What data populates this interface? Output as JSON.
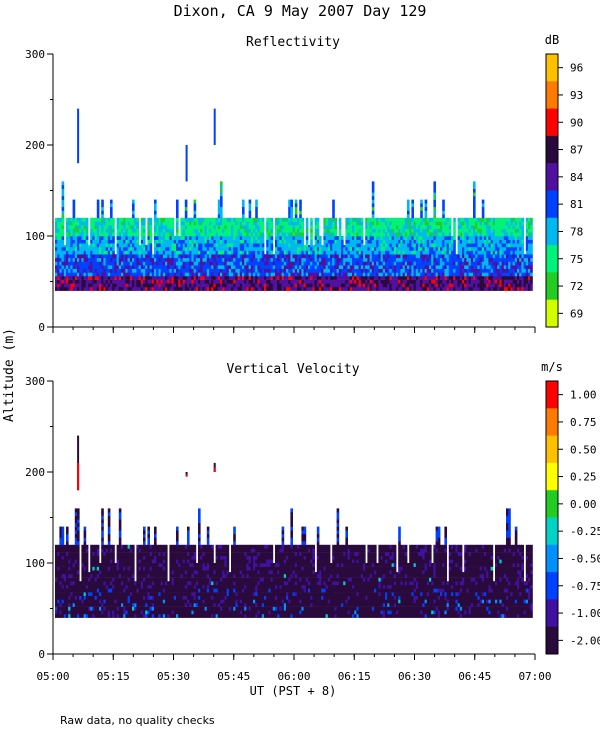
{
  "title": "Dixon, CA  9 May 2007  Day 129",
  "ylabel": "Altitude (m)",
  "xlabel": "UT  (PST + 8)",
  "footnote": "Raw data, no quality checks",
  "x_ticks": [
    "05:00",
    "05:15",
    "05:30",
    "05:45",
    "06:00",
    "06:15",
    "06:30",
    "06:45",
    "07:00"
  ],
  "chart_data": [
    {
      "type": "heatmap",
      "title": "Reflectivity",
      "unit": "dB",
      "xlabel": "UT  (PST + 8)",
      "ylabel": "Altitude (m)",
      "x_range": [
        "05:00",
        "07:00"
      ],
      "ylim": [
        0,
        300
      ],
      "y_ticks": [
        0,
        100,
        200,
        300
      ],
      "colorbar": {
        "labels": [
          "69",
          "72",
          "75",
          "78",
          "81",
          "84",
          "87",
          "90",
          "93",
          "96"
        ],
        "colors": [
          "#d2ff00",
          "#22cc22",
          "#00f27a",
          "#00b8f0",
          "#0040ff",
          "#5010a0",
          "#2a0a3c",
          "#ff0000",
          "#ff7a00",
          "#ffc000"
        ]
      },
      "data_extent": {
        "altitude_bottom": 40,
        "altitude_top_typical": 120,
        "altitude_top_max": 160
      },
      "isolated_echoes": [
        {
          "time": "05:06",
          "altitude_range": [
            180,
            240
          ]
        },
        {
          "time": "05:33",
          "altitude_range": [
            160,
            200
          ]
        },
        {
          "time": "05:40",
          "altitude_range": [
            200,
            240
          ]
        }
      ]
    },
    {
      "type": "heatmap",
      "title": "Vertical Velocity",
      "unit": "m/s",
      "xlabel": "UT  (PST + 8)",
      "ylabel": "Altitude (m)",
      "x_range": [
        "05:00",
        "07:00"
      ],
      "ylim": [
        0,
        300
      ],
      "y_ticks": [
        0,
        100,
        200,
        300
      ],
      "colorbar": {
        "labels": [
          "1.00",
          "0.75",
          "0.50",
          "0.25",
          "0.00",
          "-0.25",
          "-0.50",
          "-0.75",
          "-1.00",
          "-2.00"
        ],
        "colors": [
          "#ff0000",
          "#ff7a00",
          "#ffc000",
          "#ffff00",
          "#22cc22",
          "#00d2c8",
          "#0090ff",
          "#0040ff",
          "#4010a0",
          "#2a0a3c"
        ]
      },
      "data_extent": {
        "altitude_bottom": 40,
        "altitude_top_typical": 120,
        "altitude_top_max": 160
      },
      "isolated_echoes": [
        {
          "time": "05:06",
          "altitude_range": [
            180,
            240
          ]
        },
        {
          "time": "05:33",
          "altitude_range": [
            195,
            200
          ]
        },
        {
          "time": "05:40",
          "altitude_range": [
            200,
            210
          ]
        }
      ]
    }
  ]
}
